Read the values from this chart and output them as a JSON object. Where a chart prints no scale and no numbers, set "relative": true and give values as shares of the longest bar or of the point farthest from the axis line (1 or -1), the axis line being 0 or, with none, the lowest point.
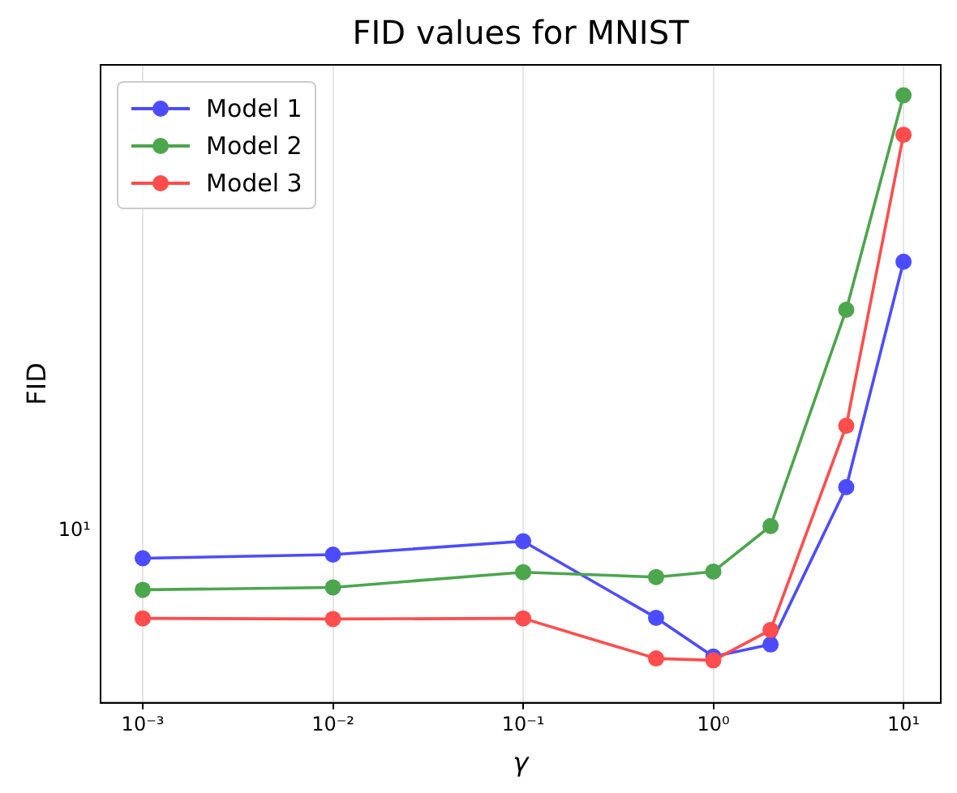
{
  "chart_data": {
    "type": "line",
    "title": "FID values for MNIST",
    "xlabel": "γ",
    "ylabel": "FID",
    "x": [
      0.001,
      0.01,
      0.1,
      0.5,
      1,
      2,
      5,
      10
    ],
    "series": [
      {
        "name": "Model 1",
        "color": "#4c4cff",
        "values": [
          0.238,
          0.244,
          0.266,
          0.14,
          0.076,
          0.096,
          0.355,
          0.726
        ]
      },
      {
        "name": "Model 2",
        "color": "#4ca64c",
        "values": [
          0.186,
          0.19,
          0.215,
          0.207,
          0.216,
          0.291,
          0.647,
          1
        ]
      },
      {
        "name": "Model 3",
        "color": "#ff4c4c",
        "values": [
          0.139,
          0.138,
          0.139,
          0.073,
          0.07,
          0.12,
          0.456,
          0.935
        ]
      }
    ],
    "relative": true,
    "annotations": [
      "10¹"
    ],
    "log": "x",
    "xlim": [
      0.00062,
      15.7
    ],
    "xticks": [
      {
        "value": 0.001,
        "label": "10⁻³"
      },
      {
        "value": 0.01,
        "label": "10⁻²"
      },
      {
        "value": 0.1,
        "label": "10⁻¹"
      },
      {
        "value": 1,
        "label": "10⁰"
      },
      {
        "value": 10,
        "label": "10¹"
      }
    ],
    "grid": true,
    "legend": "top left",
    "marker": "circle",
    "line_style": "solid"
  }
}
